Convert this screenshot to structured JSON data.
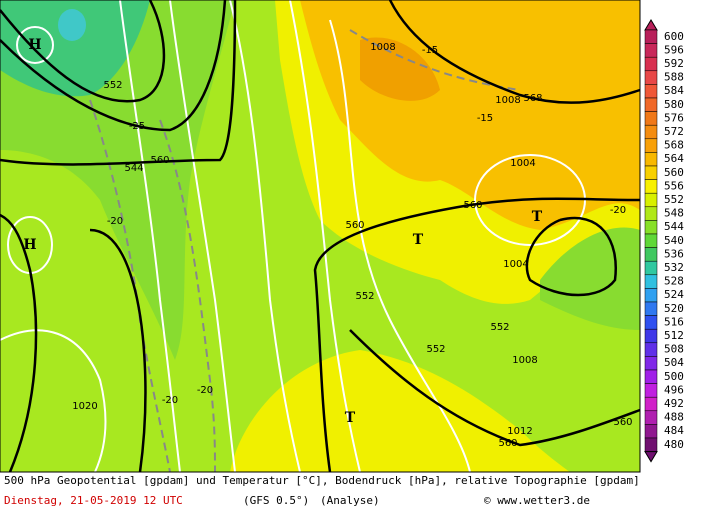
{
  "legend": [
    {
      "label": "600",
      "color": "#b8205a"
    },
    {
      "label": "596",
      "color": "#c8285a"
    },
    {
      "label": "592",
      "color": "#d83050"
    },
    {
      "label": "588",
      "color": "#e84848"
    },
    {
      "label": "584",
      "color": "#f05838"
    },
    {
      "label": "580",
      "color": "#f06828"
    },
    {
      "label": "576",
      "color": "#f07818"
    },
    {
      "label": "572",
      "color": "#f48c10"
    },
    {
      "label": "568",
      "color": "#f8a008"
    },
    {
      "label": "564",
      "color": "#f8b800"
    },
    {
      "label": "560",
      "color": "#f8d000"
    },
    {
      "label": "556",
      "color": "#f8f000"
    },
    {
      "label": "552",
      "color": "#d8f000"
    },
    {
      "label": "548",
      "color": "#b0e818"
    },
    {
      "label": "544",
      "color": "#88e028"
    },
    {
      "label": "540",
      "color": "#60d838"
    },
    {
      "label": "536",
      "color": "#40c860"
    },
    {
      "label": "532",
      "color": "#30c8a0"
    },
    {
      "label": "528",
      "color": "#30c0e0"
    },
    {
      "label": "524",
      "color": "#30a0f0"
    },
    {
      "label": "520",
      "color": "#3078f0"
    },
    {
      "label": "516",
      "color": "#3050f0"
    },
    {
      "label": "512",
      "color": "#4038e8"
    },
    {
      "label": "508",
      "color": "#6030e8"
    },
    {
      "label": "504",
      "color": "#8028e8"
    },
    {
      "label": "500",
      "color": "#a020e8"
    },
    {
      "label": "496",
      "color": "#c020e0"
    },
    {
      "label": "492",
      "color": "#d020c8"
    },
    {
      "label": "488",
      "color": "#b020b0"
    },
    {
      "label": "484",
      "color": "#901890"
    },
    {
      "label": "480",
      "color": "#701070"
    }
  ],
  "map": {
    "labels": [
      "H",
      "H",
      "552",
      "560",
      "560",
      "560",
      "568",
      "560",
      "560",
      "-25",
      "-20",
      "-20",
      "-20",
      "-15",
      "-15",
      "-20",
      "1008",
      "1008",
      "1004",
      "1004",
      "1008",
      "1012",
      "1020",
      "T",
      "T",
      "T",
      "552",
      "552",
      "552",
      "544"
    ]
  },
  "footer": {
    "line1": "500 hPa Geopotential [gpdam] und Temperatur [°C], Bodendruck [hPa], relative Topographie [gpdam]",
    "date": "Dienstag, 21-05-2019   12 UTC",
    "model": "(GFS 0.5°)",
    "run": "(Analyse)",
    "credit": "© www.wetter3.de"
  }
}
